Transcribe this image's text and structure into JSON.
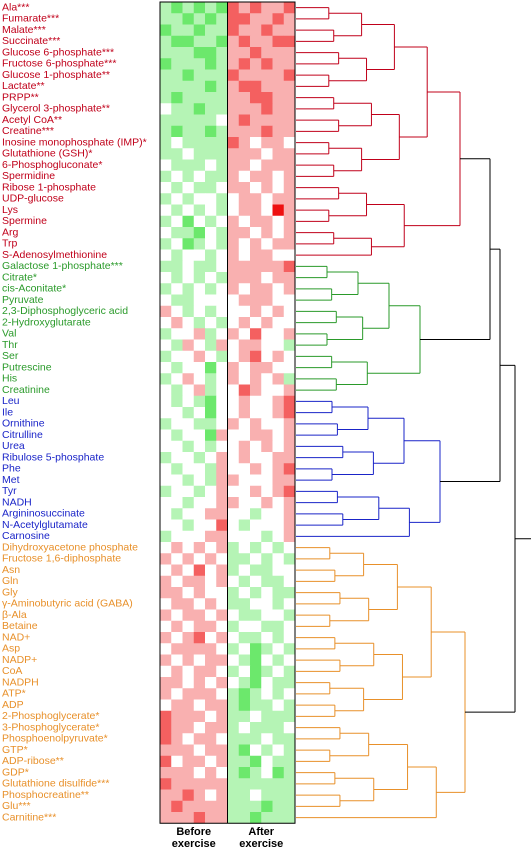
{
  "chart_data": {
    "type": "heatmap",
    "columns": [
      "Before exercise",
      "After exercise"
    ],
    "colors": {
      "low": "#22dd22",
      "mid": "#ffffff",
      "high": "#ee1111"
    },
    "groups": [
      {
        "color": "#c0001a",
        "categories": [
          "Ala***",
          "Fumarate***",
          "Malate***",
          "Succinate***",
          "Glucose 6-phosphate***",
          "Fructose 6-phosphate***",
          "Glucose 1-phosphate**",
          "Lactate**",
          "PRPP**",
          "Glycerol 3-phosphate**",
          "Acetyl CoA**",
          "Creatine***",
          "Inosine monophosphate (IMP)*",
          "Glutathione (GSH)*",
          "6-Phosphogluconate*",
          "Spermidine",
          "Ribose 1-phosphate",
          "UDP-glucose",
          "Lys",
          "Spermine",
          "Arg",
          "Trp",
          "S-Adenosylmethionine"
        ],
        "values": [
          [
            -1,
            -2,
            -1,
            -2,
            -1,
            -2,
            2,
            1,
            2,
            1,
            1,
            2
          ],
          [
            -1,
            -1,
            -2,
            -1,
            -2,
            -1,
            2,
            2,
            1,
            1,
            2,
            1
          ],
          [
            -2,
            -1,
            -1,
            -2,
            -1,
            -1,
            2,
            1,
            1,
            2,
            1,
            1
          ],
          [
            -1,
            -2,
            -2,
            -1,
            -1,
            -2,
            1,
            2,
            1,
            1,
            2,
            2
          ],
          [
            -1,
            -1,
            -1,
            -2,
            -2,
            -1,
            1,
            1,
            2,
            1,
            1,
            1
          ],
          [
            -2,
            -1,
            -1,
            -1,
            -2,
            -1,
            1,
            2,
            1,
            2,
            1,
            1
          ],
          [
            -1,
            -1,
            -2,
            -1,
            -1,
            -1,
            2,
            1,
            1,
            1,
            1,
            2
          ],
          [
            -1,
            -1,
            -1,
            -1,
            -2,
            -1,
            1,
            2,
            2,
            1,
            1,
            1
          ],
          [
            -1,
            -2,
            -1,
            -1,
            -1,
            -1,
            1,
            1,
            2,
            2,
            1,
            1
          ],
          [
            0,
            -1,
            -1,
            -2,
            -1,
            -1,
            1,
            1,
            1,
            2,
            1,
            1
          ],
          [
            -1,
            -1,
            -1,
            -1,
            -1,
            0,
            1,
            2,
            1,
            1,
            1,
            1
          ],
          [
            -1,
            -2,
            -1,
            -1,
            -2,
            -1,
            1,
            1,
            1,
            2,
            1,
            1
          ],
          [
            -1,
            0,
            -1,
            -1,
            -1,
            -1,
            2,
            1,
            0,
            1,
            1,
            0
          ],
          [
            -1,
            -1,
            0,
            -1,
            -1,
            -1,
            1,
            1,
            1,
            0,
            1,
            1
          ],
          [
            0,
            -1,
            -1,
            -1,
            0,
            -1,
            1,
            1,
            0,
            1,
            1,
            1
          ],
          [
            -1,
            0,
            -1,
            0,
            -1,
            -1,
            1,
            0,
            1,
            1,
            0,
            1
          ],
          [
            0,
            -1,
            0,
            -1,
            -1,
            0,
            1,
            1,
            0,
            1,
            0,
            1
          ],
          [
            -1,
            0,
            -1,
            0,
            0,
            -1,
            0,
            1,
            1,
            0,
            1,
            1
          ],
          [
            0,
            -1,
            0,
            -1,
            0,
            -1,
            0,
            1,
            1,
            0,
            3,
            1
          ],
          [
            -1,
            0,
            -2,
            0,
            -1,
            0,
            1,
            0,
            1,
            1,
            0,
            1
          ],
          [
            0,
            -1,
            -1,
            -2,
            0,
            -1,
            1,
            1,
            0,
            1,
            0,
            1
          ],
          [
            -1,
            0,
            -2,
            -1,
            0,
            -1,
            1,
            0,
            1,
            0,
            1,
            1
          ],
          [
            0,
            -1,
            0,
            0,
            -1,
            0,
            1,
            0,
            1,
            1,
            0,
            0
          ]
        ]
      },
      {
        "color": "#2a9a2a",
        "categories": [
          "Galactose 1-phosphate***",
          "Citrate*",
          "cis-Aconitate*",
          "Pyruvate",
          "2,3-Diphosphoglyceric acid",
          "2-Hydroxyglutarate",
          "Val",
          "Thr",
          "Ser",
          "Putrescine",
          "His",
          "Creatinine"
        ],
        "values": [
          [
            -1,
            -1,
            0,
            -1,
            -1,
            0,
            1,
            1,
            1,
            1,
            1,
            2
          ],
          [
            0,
            -1,
            0,
            -1,
            0,
            -1,
            1,
            1,
            1,
            0,
            1,
            1
          ],
          [
            -1,
            0,
            -1,
            0,
            -1,
            0,
            1,
            0,
            1,
            1,
            0,
            1
          ],
          [
            0,
            -1,
            -1,
            0,
            0,
            0,
            0,
            1,
            1,
            1,
            0,
            0
          ],
          [
            1,
            0,
            -1,
            0,
            -1,
            0,
            0,
            0,
            1,
            0,
            1,
            0
          ],
          [
            0,
            1,
            0,
            -1,
            0,
            -1,
            0,
            1,
            0,
            1,
            0,
            0
          ],
          [
            -1,
            0,
            0,
            1,
            -1,
            0,
            1,
            0,
            2,
            0,
            0,
            1
          ],
          [
            0,
            -1,
            1,
            0,
            -1,
            1,
            0,
            1,
            1,
            0,
            0,
            -1
          ],
          [
            -1,
            0,
            0,
            1,
            0,
            -1,
            0,
            1,
            2,
            0,
            1,
            0
          ],
          [
            0,
            -1,
            0,
            0,
            -2,
            0,
            1,
            0,
            1,
            1,
            0,
            0
          ],
          [
            -1,
            0,
            1,
            0,
            -1,
            0,
            1,
            0,
            1,
            0,
            1,
            -1
          ],
          [
            0,
            -1,
            0,
            1,
            -1,
            0,
            0,
            2,
            1,
            0,
            0,
            1
          ]
        ]
      },
      {
        "color": "#1a24c8",
        "categories": [
          "Leu",
          "Ile",
          "Ornithine",
          "Citrulline",
          "Urea",
          "Ribulose 5-phosphate",
          "Phe",
          "Met",
          "Tyr",
          "NADH",
          "Argininosuccinate",
          "N-Acetylglutamate",
          "Carnosine"
        ],
        "values": [
          [
            0,
            -1,
            0,
            -1,
            -2,
            0,
            0,
            1,
            0,
            0,
            1,
            2
          ],
          [
            0,
            0,
            -1,
            0,
            -2,
            0,
            0,
            1,
            0,
            0,
            1,
            2
          ],
          [
            -1,
            0,
            0,
            -1,
            -1,
            0,
            1,
            0,
            1,
            0,
            0,
            1
          ],
          [
            0,
            -1,
            0,
            0,
            -2,
            1,
            0,
            0,
            1,
            1,
            0,
            1
          ],
          [
            0,
            0,
            -1,
            0,
            -1,
            0,
            0,
            1,
            0,
            1,
            0,
            1
          ],
          [
            -1,
            0,
            0,
            -1,
            0,
            1,
            0,
            1,
            0,
            0,
            1,
            1
          ],
          [
            0,
            -1,
            0,
            0,
            -1,
            1,
            0,
            0,
            1,
            0,
            1,
            2
          ],
          [
            0,
            0,
            -1,
            0,
            -1,
            1,
            1,
            0,
            0,
            0,
            1,
            1
          ],
          [
            -1,
            0,
            0,
            -1,
            0,
            1,
            0,
            0,
            1,
            0,
            1,
            2
          ],
          [
            0,
            0,
            -1,
            0,
            0,
            1,
            1,
            0,
            0,
            1,
            0,
            1
          ],
          [
            0,
            -1,
            0,
            0,
            1,
            1,
            0,
            0,
            -1,
            0,
            0,
            1
          ],
          [
            0,
            0,
            -1,
            0,
            0,
            2,
            0,
            -1,
            0,
            0,
            0,
            1
          ],
          [
            -1,
            0,
            0,
            0,
            1,
            1,
            0,
            0,
            0,
            -1,
            0,
            1
          ]
        ]
      },
      {
        "color": "#e8902a",
        "categories": [
          "Dihydroxyacetone phosphate",
          "Fructose 1,6-diphosphate",
          "Asn",
          "Gln",
          "Gly",
          "γ-Aminobutyric acid (GABA)",
          "β-Ala",
          "Betaine",
          "NAD+",
          "Asp",
          "NADP+",
          "CoA",
          "NADPH",
          "ATP*",
          "ADP",
          "2-Phosphoglycerate*",
          "3-Phosphoglycerate*",
          "Phosphoenolpyruvate*",
          "GTP*",
          "ADP-ribose**",
          "GDP*",
          "Glutathione disulfide***",
          "Phosphocreatine**",
          "Glu***",
          "Carnitine***"
        ],
        "values": [
          [
            0,
            1,
            0,
            1,
            0,
            1,
            -1,
            0,
            -1,
            0,
            -1,
            0
          ],
          [
            1,
            0,
            1,
            0,
            1,
            0,
            -1,
            -1,
            0,
            -1,
            0,
            -1
          ],
          [
            0,
            1,
            0,
            2,
            0,
            1,
            -1,
            0,
            -1,
            -1,
            0,
            0
          ],
          [
            1,
            0,
            1,
            1,
            0,
            1,
            0,
            -1,
            0,
            -1,
            -1,
            0
          ],
          [
            1,
            1,
            0,
            1,
            0,
            0,
            -1,
            0,
            -1,
            0,
            -1,
            -1
          ],
          [
            0,
            1,
            1,
            0,
            1,
            0,
            -1,
            -1,
            0,
            0,
            -1,
            0
          ],
          [
            1,
            0,
            1,
            1,
            0,
            1,
            0,
            -1,
            -1,
            0,
            0,
            -1
          ],
          [
            0,
            1,
            0,
            1,
            1,
            0,
            -1,
            0,
            0,
            -1,
            -1,
            0
          ],
          [
            1,
            0,
            1,
            2,
            0,
            1,
            0,
            -1,
            -1,
            0,
            -1,
            0
          ],
          [
            0,
            1,
            1,
            1,
            1,
            0,
            -1,
            0,
            -2,
            -1,
            0,
            -1
          ],
          [
            1,
            0,
            1,
            0,
            1,
            1,
            0,
            -1,
            -2,
            0,
            -1,
            0
          ],
          [
            0,
            1,
            0,
            1,
            1,
            0,
            -1,
            0,
            -2,
            -1,
            0,
            -1
          ],
          [
            1,
            1,
            0,
            1,
            0,
            1,
            0,
            -1,
            -2,
            0,
            -1,
            -1
          ],
          [
            1,
            0,
            1,
            1,
            1,
            0,
            -1,
            -2,
            -1,
            0,
            -1,
            0
          ],
          [
            0,
            1,
            1,
            0,
            1,
            1,
            -1,
            -2,
            -1,
            -1,
            0,
            -1
          ],
          [
            2,
            1,
            1,
            1,
            0,
            1,
            -1,
            -1,
            0,
            -1,
            -1,
            -1
          ],
          [
            2,
            1,
            1,
            0,
            1,
            1,
            -1,
            0,
            -1,
            -1,
            -1,
            0
          ],
          [
            2,
            1,
            0,
            1,
            1,
            0,
            -1,
            -1,
            -1,
            0,
            -1,
            -1
          ],
          [
            1,
            1,
            1,
            0,
            1,
            1,
            -1,
            -2,
            0,
            -1,
            0,
            -1
          ],
          [
            2,
            0,
            1,
            1,
            0,
            1,
            -1,
            -1,
            -2,
            0,
            -1,
            -1
          ],
          [
            1,
            1,
            1,
            0,
            1,
            0,
            -1,
            -2,
            -1,
            0,
            -2,
            -1
          ],
          [
            2,
            1,
            1,
            1,
            1,
            1,
            -1,
            -1,
            -1,
            -1,
            -1,
            -1
          ],
          [
            1,
            1,
            2,
            1,
            0,
            1,
            -1,
            -1,
            0,
            -1,
            -1,
            -1
          ],
          [
            1,
            2,
            1,
            1,
            1,
            1,
            -1,
            -1,
            -1,
            -2,
            -1,
            -1
          ],
          [
            1,
            1,
            1,
            2,
            1,
            1,
            -1,
            -1,
            -2,
            -1,
            -1,
            -1
          ]
        ]
      }
    ]
  }
}
